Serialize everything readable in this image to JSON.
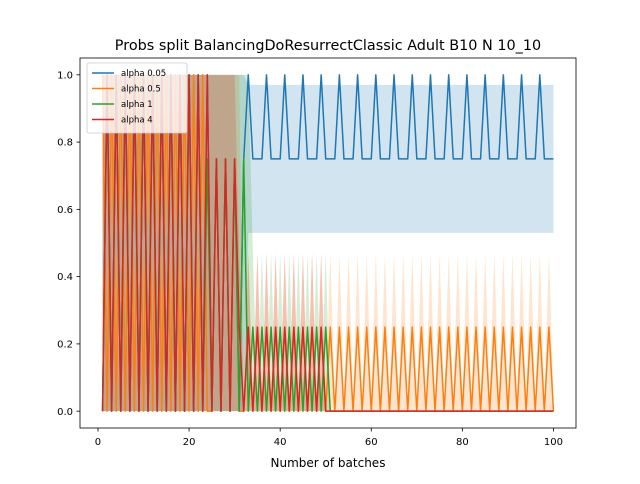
{
  "chart_data": {
    "type": "line",
    "title": "Probs split BalancingDoResurrectClassic Adult B10 N 10_10",
    "xlabel": "Number of batches",
    "ylabel": "",
    "xlim": [
      -3.95,
      104.95
    ],
    "ylim": [
      -0.05,
      1.05
    ],
    "xticks": [
      0,
      20,
      40,
      60,
      80,
      100
    ],
    "yticks": [
      0.0,
      0.2,
      0.4,
      0.6,
      0.8,
      1.0
    ],
    "xtick_labels": [
      "0",
      "20",
      "40",
      "60",
      "80",
      "100"
    ],
    "ytick_labels": [
      "0.0",
      "0.2",
      "0.4",
      "0.6",
      "0.8",
      "1.0"
    ],
    "legend_position": "top-left",
    "series": [
      {
        "name": "alpha 0.05",
        "color": "#1f77b4",
        "segments": [
          {
            "x_start": 1,
            "x_end": 25,
            "pattern": [
              0.0,
              1.0
            ],
            "band_low": [
              0.0,
              0.0
            ],
            "band_high": [
              1.0,
              1.0
            ]
          },
          {
            "x_start": 26,
            "x_end": 32,
            "pattern": [
              0.75,
              0.0
            ],
            "band_low": [
              0.0,
              0.0
            ],
            "band_high": [
              1.0,
              1.0
            ]
          },
          {
            "x_start": 33,
            "x_end": 100,
            "pattern": [
              1.0,
              0.75,
              0.75,
              0.75
            ],
            "band_low": [
              0.53,
              0.53,
              0.53,
              0.53
            ],
            "band_high": [
              0.97,
              0.97,
              0.97,
              0.97
            ]
          }
        ]
      },
      {
        "name": "alpha 0.5",
        "color": "#ff7f0e",
        "segments": [
          {
            "x_start": 1,
            "x_end": 24,
            "pattern": [
              1.0,
              0.0
            ],
            "band_low": [
              0.0,
              0.0
            ],
            "band_high": [
              1.0,
              1.0
            ]
          },
          {
            "x_start": 25,
            "x_end": 31,
            "pattern": [
              0.0,
              0.75
            ],
            "band_low": [
              0.0,
              0.0
            ],
            "band_high": [
              1.0,
              1.0
            ]
          },
          {
            "x_start": 32,
            "x_end": 100,
            "pattern": [
              0.0,
              0.25
            ],
            "band_low": [
              0.0,
              0.0
            ],
            "band_high": [
              0.03,
              0.47
            ]
          }
        ]
      },
      {
        "name": "alpha 1",
        "color": "#2ca02c",
        "segments": [
          {
            "x_start": 1,
            "x_end": 23,
            "pattern": [
              0.0,
              1.0
            ],
            "band_low": [
              0.0,
              0.0
            ],
            "band_high": [
              1.0,
              1.0
            ]
          },
          {
            "x_start": 24,
            "x_end": 33,
            "pattern": [
              0.75,
              0.0
            ],
            "band_low": [
              0.0,
              0.0
            ],
            "band_high": [
              1.0,
              1.0
            ]
          },
          {
            "x_start": 34,
            "x_end": 50,
            "pattern": [
              0.25,
              0.0
            ],
            "band_low": [
              0.0,
              0.0
            ],
            "band_high": [
              0.47,
              0.03
            ]
          },
          {
            "x_start": 51,
            "x_end": 100,
            "pattern": [
              0.0
            ],
            "band_low": [
              0.0
            ],
            "band_high": [
              0.0
            ]
          }
        ]
      },
      {
        "name": "alpha 4",
        "color": "#d62728",
        "segments": [
          {
            "x_start": 1,
            "x_end": 24,
            "pattern": [
              0.0,
              1.0
            ],
            "band_low": [
              0.0,
              0.0
            ],
            "band_high": [
              1.0,
              1.0
            ]
          },
          {
            "x_start": 25,
            "x_end": 30,
            "pattern": [
              0.0,
              0.75
            ],
            "band_low": [
              0.0,
              0.0
            ],
            "band_high": [
              1.0,
              1.0
            ]
          },
          {
            "x_start": 31,
            "x_end": 49,
            "pattern": [
              0.25,
              0.0
            ],
            "band_low": [
              0.0,
              0.0
            ],
            "band_high": [
              0.47,
              0.03
            ]
          },
          {
            "x_start": 50,
            "x_end": 100,
            "pattern": [
              0.0
            ],
            "band_low": [
              0.0
            ],
            "band_high": [
              0.0
            ]
          }
        ]
      }
    ]
  }
}
